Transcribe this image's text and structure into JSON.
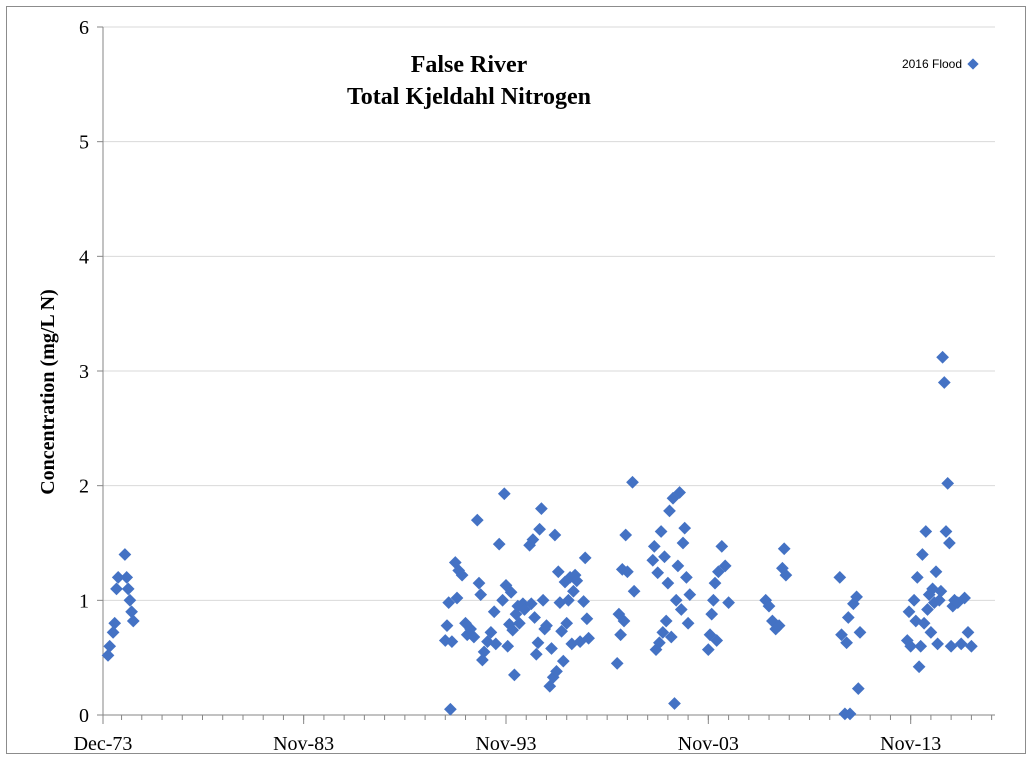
{
  "chart_data": {
    "type": "scatter",
    "title_lines": [
      "False River",
      "Total Kjeldahl Nitrogen"
    ],
    "ylabel": "Concentration (mg/L N)",
    "xlabel": "",
    "x_axis_type": "date",
    "xlim": [
      "1973-12-01",
      "2018-01-01"
    ],
    "ylim": [
      0,
      6
    ],
    "y_ticks": [
      "0",
      "1",
      "2",
      "3",
      "4",
      "5",
      "6"
    ],
    "x_ticks": [
      {
        "label": "Dec-73",
        "date": "1973-12-01"
      },
      {
        "label": "Nov-83",
        "date": "1983-11-01"
      },
      {
        "label": "Nov-93",
        "date": "1993-11-01"
      },
      {
        "label": "Nov-03",
        "date": "2003-11-01"
      },
      {
        "label": "Nov-13",
        "date": "2013-11-01"
      }
    ],
    "grid": "horizontal major gridlines",
    "legend_position": "top-right",
    "marker_color": "#4472c4",
    "marker_shape": "diamond",
    "series": [
      {
        "name": "2016 Flood",
        "points": [
          [
            "1974-03-01",
            0.52
          ],
          [
            "1974-04-01",
            0.6
          ],
          [
            "1974-06-01",
            0.72
          ],
          [
            "1974-07-01",
            0.8
          ],
          [
            "1974-08-01",
            1.1
          ],
          [
            "1974-09-01",
            1.2
          ],
          [
            "1975-01-01",
            1.4
          ],
          [
            "1975-02-01",
            1.2
          ],
          [
            "1975-03-01",
            1.1
          ],
          [
            "1975-04-01",
            1.0
          ],
          [
            "1975-05-01",
            0.9
          ],
          [
            "1975-06-01",
            0.82
          ],
          [
            "1990-11-01",
            0.65
          ],
          [
            "1990-12-01",
            0.78
          ],
          [
            "1991-01-01",
            0.98
          ],
          [
            "1991-02-01",
            0.05
          ],
          [
            "1991-03-01",
            0.64
          ],
          [
            "1991-05-01",
            1.33
          ],
          [
            "1991-06-01",
            1.02
          ],
          [
            "1991-07-01",
            1.26
          ],
          [
            "1991-09-01",
            1.22
          ],
          [
            "1991-11-01",
            0.8
          ],
          [
            "1991-12-01",
            0.7
          ],
          [
            "1992-02-01",
            0.75
          ],
          [
            "1992-04-01",
            0.68
          ],
          [
            "1992-06-01",
            1.7
          ],
          [
            "1992-07-01",
            1.15
          ],
          [
            "1992-08-01",
            1.05
          ],
          [
            "1992-09-01",
            0.48
          ],
          [
            "1992-10-01",
            0.55
          ],
          [
            "1992-12-01",
            0.64
          ],
          [
            "1993-02-01",
            0.72
          ],
          [
            "1993-04-01",
            0.9
          ],
          [
            "1993-05-01",
            0.62
          ],
          [
            "1993-07-01",
            1.49
          ],
          [
            "1993-09-01",
            1.0
          ],
          [
            "1993-10-01",
            1.93
          ],
          [
            "1993-11-01",
            1.13
          ],
          [
            "1993-12-01",
            0.6
          ],
          [
            "1994-01-01",
            0.79
          ],
          [
            "1994-02-01",
            1.07
          ],
          [
            "1994-03-01",
            0.74
          ],
          [
            "1994-04-01",
            0.35
          ],
          [
            "1994-05-01",
            0.88
          ],
          [
            "1994-06-01",
            0.95
          ],
          [
            "1994-07-01",
            0.8
          ],
          [
            "1994-09-01",
            0.97
          ],
          [
            "1994-10-01",
            0.92
          ],
          [
            "1995-01-01",
            1.48
          ],
          [
            "1995-02-01",
            0.97
          ],
          [
            "1995-03-01",
            1.53
          ],
          [
            "1995-04-01",
            0.85
          ],
          [
            "1995-05-01",
            0.53
          ],
          [
            "1995-06-01",
            0.63
          ],
          [
            "1995-07-01",
            1.62
          ],
          [
            "1995-08-01",
            1.8
          ],
          [
            "1995-09-01",
            1.0
          ],
          [
            "1995-10-01",
            0.75
          ],
          [
            "1995-11-01",
            0.78
          ],
          [
            "1996-01-01",
            0.25
          ],
          [
            "1996-02-01",
            0.58
          ],
          [
            "1996-03-01",
            0.33
          ],
          [
            "1996-04-01",
            1.57
          ],
          [
            "1996-05-01",
            0.38
          ],
          [
            "1996-06-01",
            1.25
          ],
          [
            "1996-07-01",
            0.98
          ],
          [
            "1996-08-01",
            0.73
          ],
          [
            "1996-09-01",
            0.47
          ],
          [
            "1996-10-01",
            1.16
          ],
          [
            "1996-11-01",
            0.8
          ],
          [
            "1996-12-01",
            1.0
          ],
          [
            "1997-01-01",
            1.2
          ],
          [
            "1997-02-01",
            0.62
          ],
          [
            "1997-03-01",
            1.08
          ],
          [
            "1997-04-01",
            1.22
          ],
          [
            "1997-05-01",
            1.17
          ],
          [
            "1997-07-01",
            0.64
          ],
          [
            "1997-09-01",
            0.99
          ],
          [
            "1997-10-01",
            1.37
          ],
          [
            "1997-11-01",
            0.84
          ],
          [
            "1997-12-01",
            0.67
          ],
          [
            "1999-05-01",
            0.45
          ],
          [
            "1999-06-01",
            0.88
          ],
          [
            "1999-07-01",
            0.7
          ],
          [
            "1999-08-01",
            1.27
          ],
          [
            "1999-09-01",
            0.82
          ],
          [
            "1999-10-01",
            1.57
          ],
          [
            "1999-11-01",
            1.25
          ],
          [
            "2000-02-01",
            2.03
          ],
          [
            "2000-03-01",
            1.08
          ],
          [
            "2001-02-01",
            1.35
          ],
          [
            "2001-03-01",
            1.47
          ],
          [
            "2001-04-01",
            0.57
          ],
          [
            "2001-05-01",
            1.24
          ],
          [
            "2001-06-01",
            0.63
          ],
          [
            "2001-07-01",
            1.6
          ],
          [
            "2001-08-01",
            0.72
          ],
          [
            "2001-09-01",
            1.38
          ],
          [
            "2001-10-01",
            0.82
          ],
          [
            "2001-11-01",
            1.15
          ],
          [
            "2001-12-01",
            1.78
          ],
          [
            "2002-01-01",
            0.68
          ],
          [
            "2002-02-01",
            1.89
          ],
          [
            "2002-03-01",
            0.1
          ],
          [
            "2002-04-01",
            1.0
          ],
          [
            "2002-05-01",
            1.3
          ],
          [
            "2002-06-01",
            1.94
          ],
          [
            "2002-07-01",
            0.92
          ],
          [
            "2002-08-01",
            1.5
          ],
          [
            "2002-09-01",
            1.63
          ],
          [
            "2002-10-01",
            1.2
          ],
          [
            "2002-11-01",
            0.8
          ],
          [
            "2002-12-01",
            1.05
          ],
          [
            "2003-11-01",
            0.57
          ],
          [
            "2003-12-01",
            0.7
          ],
          [
            "2004-01-01",
            0.88
          ],
          [
            "2004-02-01",
            1.0
          ],
          [
            "2004-03-01",
            1.15
          ],
          [
            "2004-04-01",
            0.65
          ],
          [
            "2004-05-01",
            1.25
          ],
          [
            "2004-07-01",
            1.47
          ],
          [
            "2004-09-01",
            1.3
          ],
          [
            "2004-11-01",
            0.98
          ],
          [
            "2006-09-01",
            1.0
          ],
          [
            "2006-11-01",
            0.95
          ],
          [
            "2007-01-01",
            0.82
          ],
          [
            "2007-03-01",
            0.75
          ],
          [
            "2007-05-01",
            0.78
          ],
          [
            "2007-07-01",
            1.28
          ],
          [
            "2007-08-01",
            1.45
          ],
          [
            "2007-09-01",
            1.22
          ],
          [
            "2010-05-01",
            1.2
          ],
          [
            "2010-06-01",
            0.7
          ],
          [
            "2010-08-01",
            0.01
          ],
          [
            "2010-09-01",
            0.63
          ],
          [
            "2010-10-01",
            0.85
          ],
          [
            "2010-11-01",
            0.01
          ],
          [
            "2011-01-01",
            0.97
          ],
          [
            "2011-03-01",
            1.03
          ],
          [
            "2011-04-01",
            0.23
          ],
          [
            "2011-05-01",
            0.72
          ],
          [
            "2013-09-01",
            0.65
          ],
          [
            "2013-10-01",
            0.9
          ],
          [
            "2013-11-01",
            0.6
          ],
          [
            "2014-01-01",
            1.0
          ],
          [
            "2014-02-01",
            0.82
          ],
          [
            "2014-03-01",
            1.2
          ],
          [
            "2014-04-01",
            0.42
          ],
          [
            "2014-05-01",
            0.6
          ],
          [
            "2014-06-01",
            1.4
          ],
          [
            "2014-07-01",
            0.8
          ],
          [
            "2014-08-01",
            1.6
          ],
          [
            "2014-09-01",
            0.92
          ],
          [
            "2014-10-01",
            1.05
          ],
          [
            "2014-11-01",
            0.72
          ],
          [
            "2014-12-01",
            1.1
          ],
          [
            "2015-01-01",
            0.98
          ],
          [
            "2015-02-01",
            1.25
          ],
          [
            "2015-03-01",
            0.62
          ],
          [
            "2015-04-01",
            1.0
          ],
          [
            "2015-05-01",
            1.08
          ],
          [
            "2015-06-01",
            3.12
          ],
          [
            "2015-07-01",
            2.9
          ],
          [
            "2015-08-01",
            1.6
          ],
          [
            "2015-09-01",
            2.02
          ],
          [
            "2015-10-01",
            1.5
          ],
          [
            "2015-11-01",
            0.6
          ],
          [
            "2015-12-01",
            0.95
          ],
          [
            "2016-01-01",
            1.0
          ],
          [
            "2016-03-01",
            0.98
          ],
          [
            "2016-05-01",
            0.62
          ],
          [
            "2016-07-01",
            1.02
          ],
          [
            "2016-09-01",
            0.72
          ],
          [
            "2016-11-01",
            0.6
          ]
        ]
      }
    ]
  }
}
